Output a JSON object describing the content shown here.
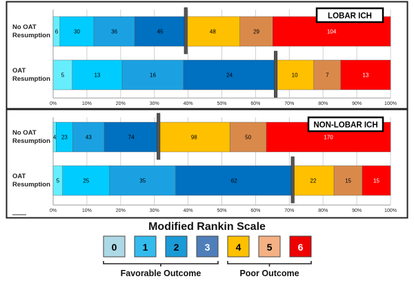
{
  "chart_data": [
    {
      "type": "bar",
      "stacked": "100%",
      "orientation": "horizontal",
      "title": "LOBAR ICH",
      "categories": [
        "No OAT Resumption",
        "OAT Resumption"
      ],
      "category_lines": [
        [
          "No OAT",
          "Resumption"
        ],
        [
          "OAT",
          "Resumption"
        ]
      ],
      "series": [
        {
          "name": "0",
          "values": [
            6,
            5
          ]
        },
        {
          "name": "1",
          "values": [
            30,
            13
          ]
        },
        {
          "name": "2",
          "values": [
            36,
            16
          ]
        },
        {
          "name": "3",
          "values": [
            45,
            24
          ]
        },
        {
          "name": "4",
          "values": [
            48,
            10
          ]
        },
        {
          "name": "5",
          "values": [
            29,
            7
          ]
        },
        {
          "name": "6",
          "values": [
            104,
            13
          ]
        }
      ],
      "xticks": [
        "0%",
        "10%",
        "20%",
        "30%",
        "40%",
        "50%",
        "60%",
        "70%",
        "80%",
        "90%",
        "100%"
      ],
      "xlim": [
        0,
        100
      ],
      "grid": true,
      "annotations": "vertical marker between mRS 3 and 4 on each bar"
    },
    {
      "type": "bar",
      "stacked": "100%",
      "orientation": "horizontal",
      "title": "NON-LOBAR ICH",
      "categories": [
        "No OAT Resumption",
        "OAT Resumption"
      ],
      "category_lines": [
        [
          "No OAT",
          "Resumption"
        ],
        [
          "OAT",
          "Resumption"
        ]
      ],
      "series": [
        {
          "name": "0",
          "values": [
            4,
            5
          ]
        },
        {
          "name": "1",
          "values": [
            23,
            25
          ]
        },
        {
          "name": "2",
          "values": [
            43,
            35
          ]
        },
        {
          "name": "3",
          "values": [
            74,
            62
          ]
        },
        {
          "name": "4",
          "values": [
            98,
            22
          ]
        },
        {
          "name": "5",
          "values": [
            50,
            15
          ]
        },
        {
          "name": "6",
          "values": [
            170,
            15
          ]
        }
      ],
      "xticks": [
        "0%",
        "10%",
        "20%",
        "30%",
        "40%",
        "50%",
        "60%",
        "70%",
        "80%",
        "90%",
        "100%"
      ],
      "xlim": [
        0,
        100
      ],
      "grid": true,
      "annotations": "vertical marker between mRS 3 and 4 on each bar"
    }
  ],
  "bar_colors": [
    "#66eeff",
    "#00ccff",
    "#1ba1e2",
    "#0070c0",
    "#ffc000",
    "#d98a4b",
    "#ff0000"
  ],
  "label_colors": [
    "#000000",
    "#000000",
    "#000000",
    "#000000",
    "#000000",
    "#000000",
    "#ffffff"
  ],
  "legend": {
    "title": "Modified Rankin Scale",
    "items": [
      {
        "label": "0",
        "color": "#add8e6",
        "text": "#000000"
      },
      {
        "label": "1",
        "color": "#33bbee",
        "text": "#000000"
      },
      {
        "label": "2",
        "color": "#1a9ad6",
        "text": "#000000"
      },
      {
        "label": "3",
        "color": "#4f7fba",
        "text": "#ffffff"
      },
      {
        "label": "4",
        "color": "#ffc000",
        "text": "#000000"
      },
      {
        "label": "5",
        "color": "#f4b183",
        "text": "#000000"
      },
      {
        "label": "6",
        "color": "#ee0000",
        "text": "#ffffff"
      }
    ],
    "groups": [
      {
        "label": "Favorable Outcome",
        "from": 0,
        "to": 3
      },
      {
        "label": "Poor Outcome",
        "from": 4,
        "to": 6
      }
    ]
  }
}
